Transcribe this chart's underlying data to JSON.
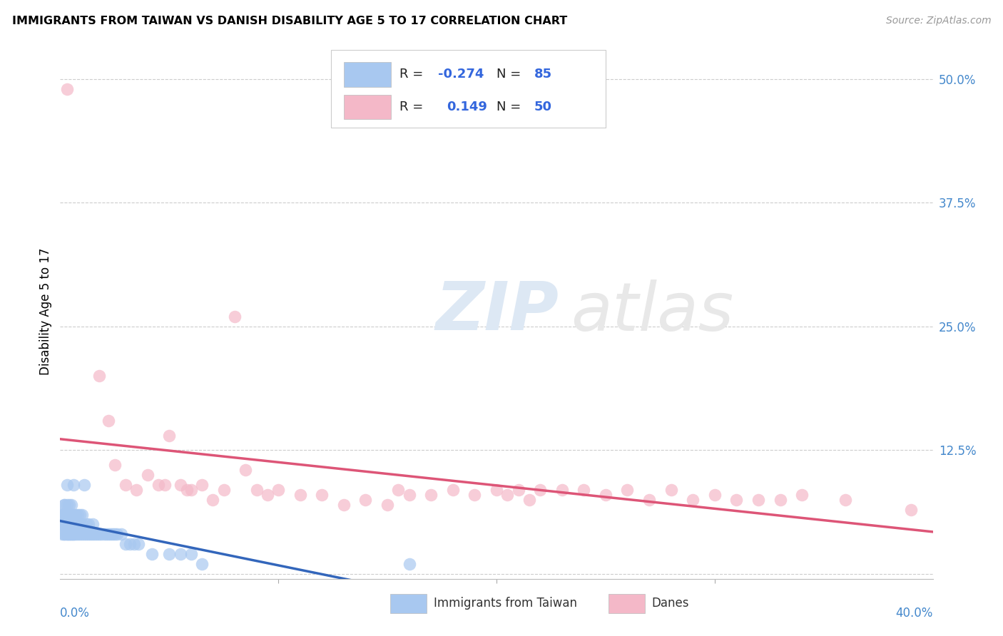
{
  "title": "IMMIGRANTS FROM TAIWAN VS DANISH DISABILITY AGE 5 TO 17 CORRELATION CHART",
  "source": "Source: ZipAtlas.com",
  "ylabel": "Disability Age 5 to 17",
  "ytick_values": [
    0.0,
    0.125,
    0.25,
    0.375,
    0.5
  ],
  "ytick_labels": [
    "",
    "12.5%",
    "25.0%",
    "37.5%",
    "50.0%"
  ],
  "xlim": [
    0.0,
    0.4
  ],
  "ylim": [
    -0.005,
    0.535
  ],
  "legend_taiwan_R": -0.274,
  "legend_taiwan_N": 85,
  "legend_danes_R": 0.149,
  "legend_danes_N": 50,
  "blue_color": "#a8c8f0",
  "pink_color": "#f4b8c8",
  "blue_line_color": "#3366bb",
  "pink_line_color": "#dd5577",
  "watermark_zip": "ZIP",
  "watermark_atlas": "atlas",
  "taiwan_x": [
    0.001,
    0.001,
    0.001,
    0.001,
    0.001,
    0.002,
    0.002,
    0.002,
    0.002,
    0.002,
    0.002,
    0.002,
    0.002,
    0.003,
    0.003,
    0.003,
    0.003,
    0.003,
    0.003,
    0.003,
    0.003,
    0.003,
    0.004,
    0.004,
    0.004,
    0.004,
    0.004,
    0.004,
    0.004,
    0.005,
    0.005,
    0.005,
    0.005,
    0.005,
    0.005,
    0.006,
    0.006,
    0.006,
    0.006,
    0.006,
    0.006,
    0.007,
    0.007,
    0.007,
    0.007,
    0.008,
    0.008,
    0.008,
    0.009,
    0.009,
    0.009,
    0.01,
    0.01,
    0.01,
    0.011,
    0.011,
    0.012,
    0.012,
    0.013,
    0.013,
    0.014,
    0.015,
    0.015,
    0.016,
    0.017,
    0.018,
    0.019,
    0.02,
    0.021,
    0.022,
    0.023,
    0.024,
    0.025,
    0.026,
    0.028,
    0.03,
    0.032,
    0.034,
    0.036,
    0.042,
    0.05,
    0.055,
    0.06,
    0.065,
    0.16
  ],
  "taiwan_y": [
    0.04,
    0.05,
    0.05,
    0.06,
    0.06,
    0.04,
    0.04,
    0.05,
    0.05,
    0.06,
    0.06,
    0.07,
    0.07,
    0.04,
    0.04,
    0.05,
    0.05,
    0.05,
    0.06,
    0.06,
    0.07,
    0.09,
    0.04,
    0.04,
    0.05,
    0.05,
    0.06,
    0.06,
    0.07,
    0.04,
    0.04,
    0.05,
    0.05,
    0.06,
    0.07,
    0.04,
    0.04,
    0.05,
    0.05,
    0.06,
    0.09,
    0.04,
    0.05,
    0.05,
    0.06,
    0.04,
    0.05,
    0.06,
    0.04,
    0.05,
    0.06,
    0.04,
    0.05,
    0.06,
    0.04,
    0.09,
    0.04,
    0.05,
    0.04,
    0.05,
    0.04,
    0.04,
    0.05,
    0.04,
    0.04,
    0.04,
    0.04,
    0.04,
    0.04,
    0.04,
    0.04,
    0.04,
    0.04,
    0.04,
    0.04,
    0.03,
    0.03,
    0.03,
    0.03,
    0.02,
    0.02,
    0.02,
    0.02,
    0.01,
    0.01
  ],
  "danes_x": [
    0.003,
    0.018,
    0.022,
    0.025,
    0.03,
    0.035,
    0.04,
    0.045,
    0.048,
    0.05,
    0.055,
    0.058,
    0.06,
    0.065,
    0.07,
    0.075,
    0.08,
    0.085,
    0.09,
    0.095,
    0.1,
    0.11,
    0.12,
    0.13,
    0.14,
    0.15,
    0.155,
    0.16,
    0.17,
    0.18,
    0.19,
    0.2,
    0.205,
    0.21,
    0.215,
    0.22,
    0.23,
    0.24,
    0.25,
    0.26,
    0.27,
    0.28,
    0.29,
    0.3,
    0.31,
    0.32,
    0.33,
    0.34,
    0.36,
    0.39
  ],
  "danes_y": [
    0.49,
    0.2,
    0.155,
    0.11,
    0.09,
    0.085,
    0.1,
    0.09,
    0.09,
    0.14,
    0.09,
    0.085,
    0.085,
    0.09,
    0.075,
    0.085,
    0.26,
    0.105,
    0.085,
    0.08,
    0.085,
    0.08,
    0.08,
    0.07,
    0.075,
    0.07,
    0.085,
    0.08,
    0.08,
    0.085,
    0.08,
    0.085,
    0.08,
    0.085,
    0.075,
    0.085,
    0.085,
    0.085,
    0.08,
    0.085,
    0.075,
    0.085,
    0.075,
    0.08,
    0.075,
    0.075,
    0.075,
    0.08,
    0.075,
    0.065
  ]
}
